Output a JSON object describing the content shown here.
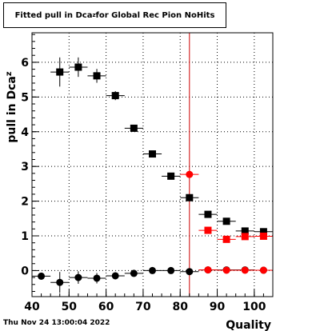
{
  "title": {
    "prefix": "Fitted pull in Dca",
    "subscript": "z",
    "suffix": " for Global Rec Pion NoHits"
  },
  "footer": {
    "timestamp": "Thu Nov 24 13:00:04 2022"
  },
  "chart_data": {
    "type": "scatter",
    "xlabel": "Quality",
    "ylabel": "pull in Dca",
    "ylabel_subscript": "z",
    "xlim": [
      40,
      105
    ],
    "ylim": [
      -0.75,
      6.85
    ],
    "xticks": [
      40,
      50,
      60,
      70,
      80,
      90,
      100
    ],
    "yticks": [
      0,
      1,
      2,
      3,
      4,
      5,
      6
    ],
    "grid": true,
    "vertical_line_x": 82.5,
    "vertical_line_color": "#cc0000",
    "series": [
      {
        "color": "#000000",
        "marker": "square",
        "x": [
          47.5,
          52.5,
          57.5,
          62.5,
          67.5,
          72.5,
          77.5,
          82.5,
          87.5,
          92.5,
          97.5,
          102.5
        ],
        "y": [
          5.72,
          5.86,
          5.61,
          5.04,
          4.1,
          3.36,
          2.72,
          2.1,
          1.62,
          1.42,
          1.14,
          1.12
        ],
        "yerr": [
          0.42,
          0.28,
          0.2,
          0.13,
          0.07,
          0.05,
          0.05,
          0.06,
          0.07,
          0.07,
          0.06,
          0.06
        ]
      },
      {
        "color": "#000000",
        "marker": "circle",
        "x": [
          42.5,
          47.5,
          52.5,
          57.5,
          62.5,
          67.5,
          72.5,
          77.5,
          82.5,
          87.5,
          92.5,
          97.5,
          102.5
        ],
        "y": [
          -0.16,
          -0.34,
          -0.2,
          -0.22,
          -0.15,
          -0.08,
          0.0,
          0.0,
          -0.03,
          0.02,
          0.02,
          0.02,
          0.01
        ],
        "yerr": [
          0.1,
          0.3,
          0.18,
          0.15,
          0.1,
          0.06,
          0.04,
          0.03,
          0.04,
          0.04,
          0.03,
          0.03,
          0.03
        ]
      },
      {
        "color": "#ff0000",
        "marker": "square",
        "x": [
          87.5,
          92.5,
          97.5,
          102.5
        ],
        "y": [
          1.16,
          0.9,
          0.98,
          0.99
        ],
        "yerr": [
          0.1,
          0.06,
          0.05,
          0.05
        ]
      },
      {
        "color": "#ff0000",
        "marker": "circle",
        "x": [
          82.5,
          87.5,
          92.5,
          97.5,
          102.5
        ],
        "y": [
          2.77,
          0.02,
          0.01,
          0.01,
          0.01
        ],
        "yerr": [
          0.1,
          0.04,
          0.03,
          0.03,
          0.03
        ]
      }
    ]
  }
}
